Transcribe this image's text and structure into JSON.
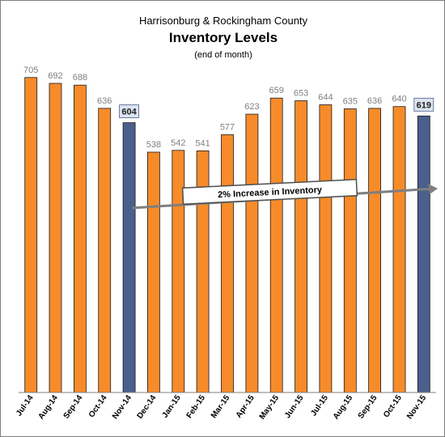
{
  "chart_data": {
    "type": "bar",
    "title_line1": "Harrisonburg & Rockingham County",
    "title_line2": "Inventory Levels",
    "title_line3": "(end of month)",
    "categories": [
      "Jul-14",
      "Aug-14",
      "Sep-14",
      "Oct-14",
      "Nov-14",
      "Dec-14",
      "Jan-15",
      "Feb-15",
      "Mar-15",
      "Apr-15",
      "May-15",
      "Jun-15",
      "Jul-15",
      "Aug-15",
      "Sep-15",
      "Oct-15",
      "Nov-15"
    ],
    "values": [
      705,
      692,
      688,
      636,
      604,
      538,
      542,
      541,
      577,
      623,
      659,
      653,
      644,
      635,
      636,
      640,
      619
    ],
    "highlighted": [
      "Nov-14",
      "Nov-15"
    ],
    "ylim": [
      0,
      750
    ],
    "grid": false,
    "annotation": "2% Increase in Inventory",
    "colors": {
      "bar": "#f78b2a",
      "bar_highlight": "#4a5f8c",
      "bar_outline": "#1a1a1a",
      "label_box_fill": "#dce3f0",
      "label_box_stroke": "#4a5f8c"
    }
  }
}
